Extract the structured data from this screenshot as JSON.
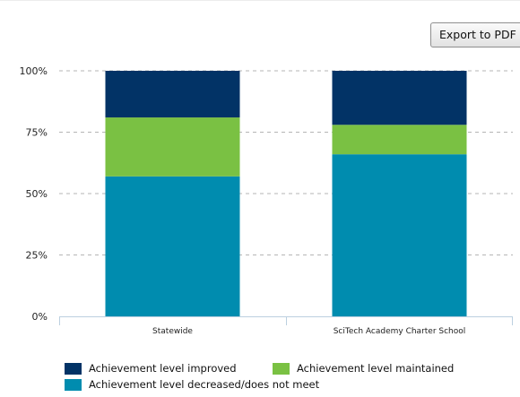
{
  "export_button": {
    "label": "Export to PDF"
  },
  "colors": {
    "improved": "#023366",
    "maintained": "#7ac143",
    "decreased": "#008caf",
    "grid": "#b5b5b5",
    "axis": "#bcd0e0",
    "text": "#222222"
  },
  "chart_data": {
    "type": "bar",
    "stacked": true,
    "categories": [
      "Statewide",
      "SciTech Academy Charter School"
    ],
    "series": [
      {
        "name": "Achievement level decreased/does not meet",
        "values": [
          57,
          66
        ],
        "color": "#008caf"
      },
      {
        "name": "Achievement level maintained",
        "values": [
          24,
          12
        ],
        "color": "#7ac143"
      },
      {
        "name": "Achievement level improved",
        "values": [
          19,
          22
        ],
        "color": "#023366"
      }
    ],
    "yticks": [
      "0%",
      "25%",
      "50%",
      "75%",
      "100%"
    ],
    "ylim": [
      0,
      100
    ],
    "grid": true,
    "legend_position": "bottom"
  },
  "legend": {
    "items": [
      {
        "label": "Achievement level improved",
        "color": "#023366"
      },
      {
        "label": "Achievement level maintained",
        "color": "#7ac143"
      },
      {
        "label": "Achievement level decreased/does not meet",
        "color": "#008caf"
      }
    ]
  }
}
